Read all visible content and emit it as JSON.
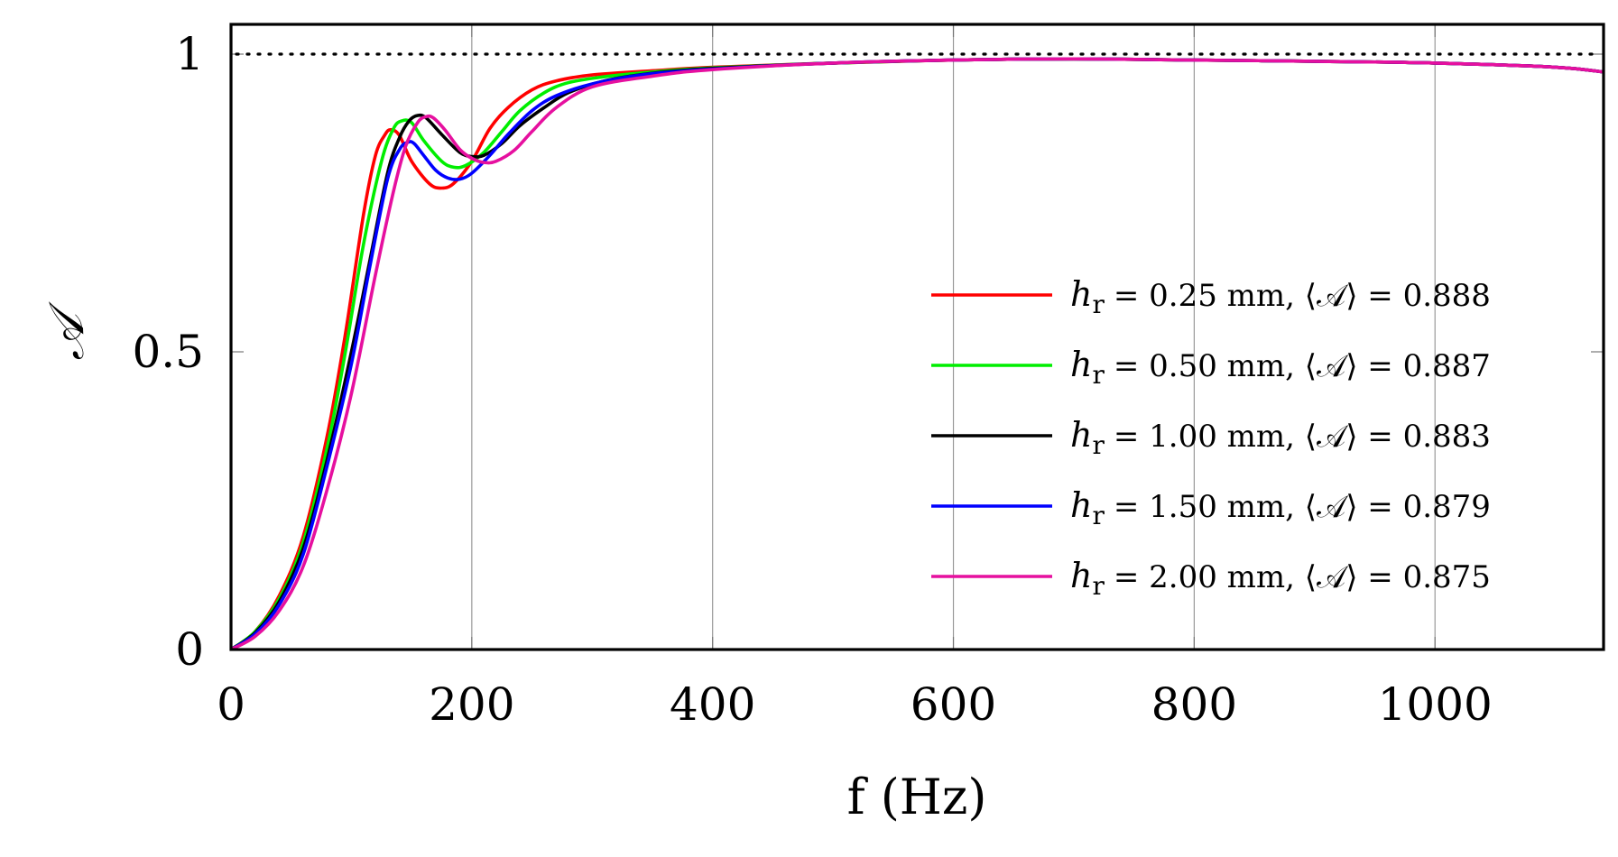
{
  "chart_data": {
    "type": "line",
    "title": "",
    "xlabel": "f (Hz)",
    "ylabel": "𝒜",
    "xlim": [
      0,
      1140
    ],
    "ylim": [
      0,
      1.05
    ],
    "grid": true,
    "legend_position": "center-right",
    "x_ticks": [
      0,
      200,
      400,
      600,
      800,
      1000
    ],
    "x_tick_labels": [
      "0",
      "200",
      "400",
      "600",
      "800",
      "1000"
    ],
    "y_ticks": [
      0,
      0.5,
      1
    ],
    "y_tick_labels": [
      "0",
      "0.5",
      "1"
    ],
    "reference_line": {
      "y": 1,
      "style": "dotted"
    },
    "series": [
      {
        "name": "h_r = 0.25 mm, ⟨𝒜⟩ = 0.888",
        "legend": {
          "var": "h",
          "sub": "r",
          "eq_value": "= 0.25 mm, ⟨𝒜⟩ = 0.888"
        },
        "color": "#ff0000",
        "x": [
          0,
          20,
          40,
          60,
          80,
          95,
          110,
          120,
          128,
          133,
          140,
          150,
          165,
          175,
          185,
          200,
          215,
          230,
          250,
          270,
          300,
          350,
          400,
          500,
          600,
          700,
          800,
          900,
          1000,
          1100,
          1140
        ],
        "y": [
          0,
          0.03,
          0.09,
          0.19,
          0.36,
          0.53,
          0.73,
          0.83,
          0.865,
          0.873,
          0.863,
          0.82,
          0.782,
          0.775,
          0.783,
          0.82,
          0.875,
          0.91,
          0.94,
          0.955,
          0.965,
          0.972,
          0.978,
          0.985,
          0.99,
          0.992,
          0.99,
          0.988,
          0.985,
          0.978,
          0.97
        ]
      },
      {
        "name": "h_r = 0.50 mm, ⟨𝒜⟩ = 0.887",
        "legend": {
          "var": "h",
          "sub": "r",
          "eq_value": "= 0.50 mm, ⟨𝒜⟩ = 0.887"
        },
        "color": "#00ee00",
        "x": [
          0,
          20,
          40,
          60,
          80,
          95,
          110,
          125,
          135,
          142,
          150,
          160,
          175,
          185,
          195,
          210,
          225,
          240,
          260,
          280,
          310,
          350,
          400,
          500,
          600,
          700,
          800,
          900,
          1000,
          1100,
          1140
        ],
        "y": [
          0,
          0.03,
          0.085,
          0.18,
          0.34,
          0.5,
          0.68,
          0.82,
          0.875,
          0.888,
          0.885,
          0.855,
          0.82,
          0.81,
          0.813,
          0.835,
          0.87,
          0.905,
          0.935,
          0.952,
          0.962,
          0.97,
          0.977,
          0.985,
          0.99,
          0.992,
          0.99,
          0.988,
          0.985,
          0.978,
          0.97
        ]
      },
      {
        "name": "h_r = 1.00 mm, ⟨𝒜⟩ = 0.883",
        "legend": {
          "var": "h",
          "sub": "r",
          "eq_value": "= 1.00 mm, ⟨𝒜⟩ = 0.883"
        },
        "color": "#000000",
        "x": [
          0,
          20,
          40,
          60,
          80,
          100,
          115,
          130,
          140,
          148,
          155,
          162,
          175,
          190,
          200,
          210,
          225,
          240,
          260,
          280,
          310,
          350,
          400,
          500,
          600,
          700,
          800,
          900,
          1000,
          1100,
          1140
        ],
        "y": [
          0,
          0.028,
          0.08,
          0.17,
          0.32,
          0.5,
          0.65,
          0.8,
          0.86,
          0.888,
          0.897,
          0.893,
          0.865,
          0.835,
          0.828,
          0.83,
          0.85,
          0.88,
          0.91,
          0.935,
          0.955,
          0.968,
          0.976,
          0.985,
          0.99,
          0.992,
          0.99,
          0.988,
          0.985,
          0.978,
          0.97
        ]
      },
      {
        "name": "h_r = 1.50 mm, ⟨𝒜⟩ = 0.879",
        "legend": {
          "var": "h",
          "sub": "r",
          "eq_value": "= 1.50 mm, ⟨𝒜⟩ = 0.879"
        },
        "color": "#0000ff",
        "x": [
          0,
          20,
          40,
          60,
          80,
          100,
          115,
          130,
          140,
          147,
          152,
          160,
          170,
          180,
          190,
          200,
          215,
          230,
          250,
          270,
          300,
          340,
          400,
          500,
          600,
          700,
          800,
          900,
          1000,
          1100,
          1140
        ],
        "y": [
          0,
          0.026,
          0.075,
          0.16,
          0.31,
          0.48,
          0.64,
          0.79,
          0.84,
          0.852,
          0.85,
          0.83,
          0.805,
          0.792,
          0.79,
          0.8,
          0.83,
          0.865,
          0.905,
          0.93,
          0.95,
          0.965,
          0.975,
          0.985,
          0.99,
          0.992,
          0.99,
          0.988,
          0.985,
          0.978,
          0.97
        ]
      },
      {
        "name": "h_r = 2.00 mm, ⟨𝒜⟩ = 0.875",
        "legend": {
          "var": "h",
          "sub": "r",
          "eq_value": "= 2.00 mm, ⟨𝒜⟩ = 0.875"
        },
        "color": "#e6109f",
        "x": [
          0,
          20,
          40,
          60,
          80,
          100,
          120,
          135,
          145,
          155,
          162,
          168,
          178,
          190,
          200,
          210,
          220,
          235,
          250,
          270,
          300,
          350,
          400,
          500,
          600,
          700,
          800,
          900,
          1000,
          1100,
          1140
        ],
        "y": [
          0,
          0.022,
          0.065,
          0.14,
          0.27,
          0.43,
          0.63,
          0.77,
          0.845,
          0.885,
          0.895,
          0.893,
          0.872,
          0.84,
          0.825,
          0.818,
          0.82,
          0.838,
          0.87,
          0.91,
          0.945,
          0.963,
          0.974,
          0.985,
          0.99,
          0.992,
          0.99,
          0.988,
          0.985,
          0.978,
          0.97
        ]
      }
    ]
  }
}
